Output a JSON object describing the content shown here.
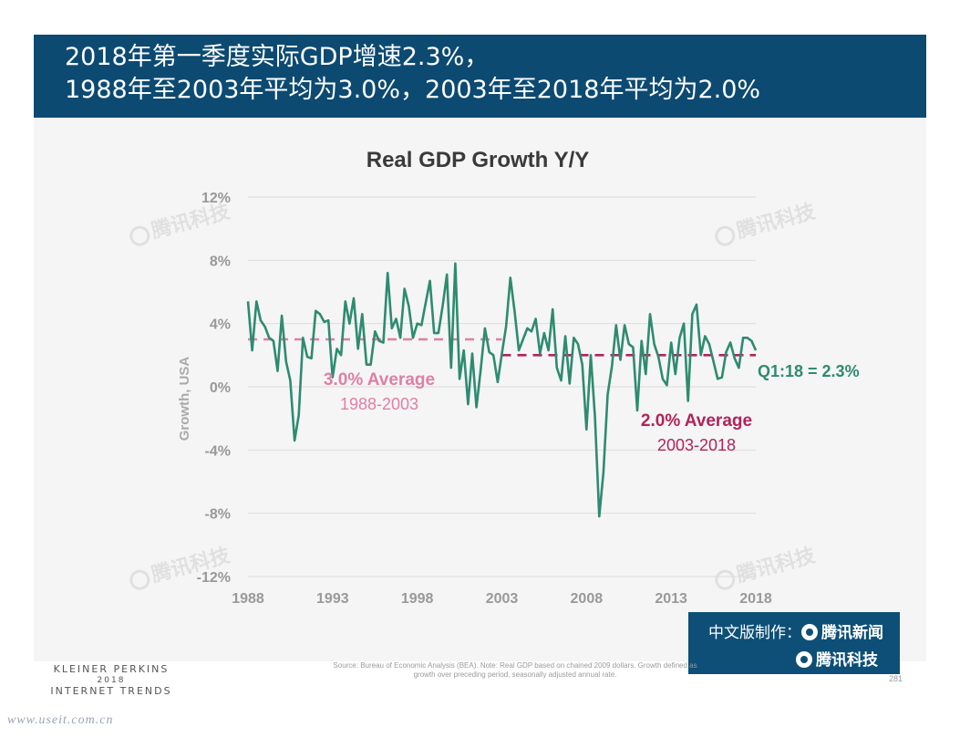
{
  "header": {
    "line1": "2018年第一季度实际GDP增速2.3%，",
    "line2": "1988年至2003年平均为3.0%，2003年至2018年平均为2.0%"
  },
  "chart_data": {
    "type": "line",
    "title": "Real GDP Growth Y/Y",
    "ylabel": "Growth, USA",
    "xlabel": "",
    "ylim": [
      -12,
      12
    ],
    "xlim": [
      1988,
      2018.25
    ],
    "y_ticks": [
      "12%",
      "8%",
      "4%",
      "0%",
      "-4%",
      "-8%",
      "-12%"
    ],
    "y_tick_values": [
      12,
      8,
      4,
      0,
      -4,
      -8,
      -12
    ],
    "x_ticks": [
      "1988",
      "1993",
      "1998",
      "2003",
      "2008",
      "2013",
      "2018"
    ],
    "x_tick_values": [
      1988,
      1993,
      1998,
      2003,
      2008,
      2013,
      2018
    ],
    "grid": true,
    "series": [
      {
        "color": "#2e8b70",
        "points": [
          [
            1988.0,
            5.4
          ],
          [
            1988.25,
            2.3
          ],
          [
            1988.5,
            5.4
          ],
          [
            1988.75,
            4.2
          ],
          [
            1989.0,
            3.8
          ],
          [
            1989.25,
            3.1
          ],
          [
            1989.5,
            2.9
          ],
          [
            1989.75,
            1.0
          ],
          [
            1990.0,
            4.5
          ],
          [
            1990.25,
            1.6
          ],
          [
            1990.5,
            0.4
          ],
          [
            1990.75,
            -3.4
          ],
          [
            1991.0,
            -1.8
          ],
          [
            1991.25,
            3.1
          ],
          [
            1991.5,
            1.9
          ],
          [
            1991.75,
            1.8
          ],
          [
            1992.0,
            4.8
          ],
          [
            1992.25,
            4.6
          ],
          [
            1992.5,
            4.1
          ],
          [
            1992.75,
            4.2
          ],
          [
            1993.0,
            0.6
          ],
          [
            1993.25,
            2.4
          ],
          [
            1993.5,
            2.0
          ],
          [
            1993.75,
            5.4
          ],
          [
            1994.0,
            4.0
          ],
          [
            1994.25,
            5.6
          ],
          [
            1994.5,
            2.4
          ],
          [
            1994.75,
            4.6
          ],
          [
            1995.0,
            1.4
          ],
          [
            1995.25,
            1.4
          ],
          [
            1995.5,
            3.5
          ],
          [
            1995.75,
            2.9
          ],
          [
            1996.0,
            2.8
          ],
          [
            1996.25,
            7.2
          ],
          [
            1996.5,
            3.7
          ],
          [
            1996.75,
            4.3
          ],
          [
            1997.0,
            3.1
          ],
          [
            1997.25,
            6.2
          ],
          [
            1997.5,
            5.1
          ],
          [
            1997.75,
            3.1
          ],
          [
            1998.0,
            4.0
          ],
          [
            1998.25,
            3.9
          ],
          [
            1998.5,
            5.3
          ],
          [
            1998.75,
            6.7
          ],
          [
            1999.0,
            3.4
          ],
          [
            1999.25,
            3.4
          ],
          [
            1999.5,
            5.1
          ],
          [
            1999.75,
            7.1
          ],
          [
            2000.0,
            1.2
          ],
          [
            2000.25,
            7.8
          ],
          [
            2000.5,
            0.5
          ],
          [
            2000.75,
            2.3
          ],
          [
            2001.0,
            -1.1
          ],
          [
            2001.25,
            2.1
          ],
          [
            2001.5,
            -1.3
          ],
          [
            2001.75,
            1.1
          ],
          [
            2002.0,
            3.7
          ],
          [
            2002.25,
            2.2
          ],
          [
            2002.5,
            2.0
          ],
          [
            2002.75,
            0.3
          ],
          [
            2003.0,
            2.1
          ],
          [
            2003.25,
            3.8
          ],
          [
            2003.5,
            6.9
          ],
          [
            2003.75,
            4.8
          ],
          [
            2004.0,
            2.3
          ],
          [
            2004.25,
            3.0
          ],
          [
            2004.5,
            3.7
          ],
          [
            2004.75,
            3.5
          ],
          [
            2005.0,
            4.3
          ],
          [
            2005.25,
            2.1
          ],
          [
            2005.5,
            3.4
          ],
          [
            2005.75,
            2.3
          ],
          [
            2006.0,
            4.9
          ],
          [
            2006.25,
            1.2
          ],
          [
            2006.5,
            0.4
          ],
          [
            2006.75,
            3.2
          ],
          [
            2007.0,
            0.2
          ],
          [
            2007.25,
            3.1
          ],
          [
            2007.5,
            2.7
          ],
          [
            2007.75,
            1.4
          ],
          [
            2008.0,
            -2.7
          ],
          [
            2008.25,
            2.0
          ],
          [
            2008.5,
            -1.9
          ],
          [
            2008.75,
            -8.2
          ],
          [
            2009.0,
            -5.4
          ],
          [
            2009.25,
            -0.5
          ],
          [
            2009.5,
            1.3
          ],
          [
            2009.75,
            3.9
          ],
          [
            2010.0,
            1.7
          ],
          [
            2010.25,
            3.9
          ],
          [
            2010.5,
            2.7
          ],
          [
            2010.75,
            2.5
          ],
          [
            2011.0,
            -1.5
          ],
          [
            2011.25,
            2.9
          ],
          [
            2011.5,
            0.8
          ],
          [
            2011.75,
            4.6
          ],
          [
            2012.0,
            2.7
          ],
          [
            2012.25,
            1.9
          ],
          [
            2012.5,
            0.5
          ],
          [
            2012.75,
            0.1
          ],
          [
            2013.0,
            2.8
          ],
          [
            2013.25,
            0.8
          ],
          [
            2013.5,
            3.1
          ],
          [
            2013.75,
            4.0
          ],
          [
            2014.0,
            -0.9
          ],
          [
            2014.25,
            4.6
          ],
          [
            2014.5,
            5.2
          ],
          [
            2014.75,
            2.0
          ],
          [
            2015.0,
            3.2
          ],
          [
            2015.25,
            2.7
          ],
          [
            2015.5,
            1.6
          ],
          [
            2015.75,
            0.5
          ],
          [
            2016.0,
            0.6
          ],
          [
            2016.25,
            2.2
          ],
          [
            2016.5,
            2.8
          ],
          [
            2016.75,
            1.8
          ],
          [
            2017.0,
            1.2
          ],
          [
            2017.25,
            3.1
          ],
          [
            2017.5,
            3.1
          ],
          [
            2017.75,
            2.9
          ],
          [
            2018.0,
            2.3
          ]
        ]
      }
    ],
    "averages": [
      {
        "value": 3.0,
        "from": 1988,
        "to": 2003,
        "color": "#e07fa4",
        "label": "3.0% Average",
        "period": "1988-2003"
      },
      {
        "value": 2.0,
        "from": 2003,
        "to": 2018,
        "color": "#b0245a",
        "label": "2.0% Average",
        "period": "2003-2018"
      }
    ],
    "annotations": [
      {
        "text": "Q1:18 = 2.3%",
        "color": "#2e8b70"
      }
    ]
  },
  "colors": {
    "header_bg": "#0c4a72",
    "series": "#2e8b70",
    "avg_early": "#e07fa4",
    "avg_late": "#b0245a",
    "grid": "#dcdcdc",
    "axis_text": "#999999"
  },
  "brand": {
    "row1_prefix": "中文版制作：",
    "row1_name": "腾讯新闻",
    "row2_name": "腾讯科技"
  },
  "watermark": "腾讯科技",
  "footer": {
    "kp_line1": "KLEINER PERKINS",
    "kp_year": "2018",
    "kp_line2": "INTERNET TRENDS",
    "source": "Source: Bureau of Economic Analysis (BEA). Note: Real GDP based on chained 2009 dollars. Growth defined as growth over preceding period, seasonally adjusted annual rate.",
    "page": "281",
    "url": "www.useit.com.cn"
  }
}
